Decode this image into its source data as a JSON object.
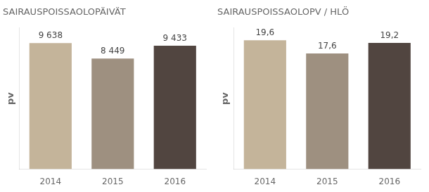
{
  "chart_data": [
    {
      "type": "bar",
      "title": "SAIRAUSPOISSAOLOPÄIVÄT",
      "categories": [
        "2014",
        "2015",
        "2016"
      ],
      "values": [
        9638,
        8449,
        9433
      ],
      "value_labels": [
        "9 638",
        "8 449",
        "9 433"
      ],
      "colors": [
        "#c4b49a",
        "#9e9080",
        "#514540"
      ],
      "ylabel": "pv",
      "ylim": [
        0,
        10800
      ],
      "grid": false,
      "data_labels": true,
      "tick_labels": "x"
    },
    {
      "type": "bar",
      "title": "SAIRAUSPOISSAOLOPV / HLÖ",
      "categories": [
        "2014",
        "2015",
        "2016"
      ],
      "values": [
        19.6,
        17.6,
        19.2
      ],
      "value_labels": [
        "19,6",
        "17,6",
        "19,2"
      ],
      "colors": [
        "#c4b49a",
        "#9e9080",
        "#514540"
      ],
      "ylabel": "pv",
      "ylim": [
        0,
        21.5
      ],
      "grid": false,
      "data_labels": true,
      "tick_labels": "x"
    }
  ]
}
